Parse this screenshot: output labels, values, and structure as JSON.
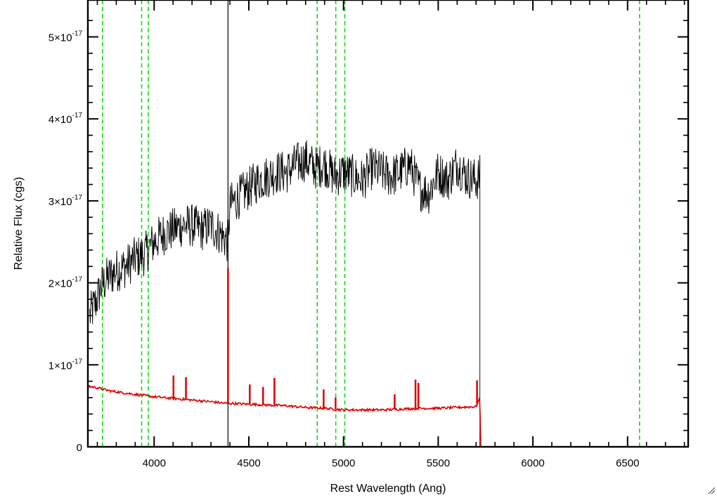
{
  "chart_data": {
    "type": "line",
    "title": "",
    "xlabel": "Rest Wavelength (Ang)",
    "ylabel": "Relative Flux (cgs)",
    "xlim": [
      3650,
      6820
    ],
    "ylim": [
      0,
      5.45e-17
    ],
    "x_ticks": [
      4000,
      4500,
      5000,
      5500,
      6000,
      6500
    ],
    "x_tick_labels": [
      "4000",
      "4500",
      "5000",
      "5500",
      "6000",
      "6500"
    ],
    "y_ticks": [
      0,
      1e-17,
      2e-17,
      3e-17,
      4e-17,
      5e-17
    ],
    "y_tick_labels": [
      {
        "mantissa": "0",
        "exponent": ""
      },
      {
        "mantissa": "1×10",
        "exponent": "-17"
      },
      {
        "mantissa": "2×10",
        "exponent": "-17"
      },
      {
        "mantissa": "3×10",
        "exponent": "-17"
      },
      {
        "mantissa": "4×10",
        "exponent": "-17"
      },
      {
        "mantissa": "5×10",
        "exponent": "-17"
      }
    ],
    "grid": false,
    "vertical_markers": {
      "color": "#00dd00",
      "style": "dashed",
      "x": [
        3727,
        3934,
        3969,
        4861,
        4959,
        5007,
        6563
      ]
    },
    "reference_line": {
      "x": 4390,
      "color": "#000000"
    },
    "series": [
      {
        "color": "#000000",
        "x": [
          3660,
          3690,
          3720,
          3750,
          3800,
          3850,
          3900,
          3950,
          4000,
          4050,
          4100,
          4150,
          4200,
          4250,
          4300,
          4350,
          4390,
          4400,
          4450,
          4500,
          4550,
          4600,
          4650,
          4700,
          4750,
          4800,
          4850,
          4900,
          4950,
          5000,
          5050,
          5100,
          5150,
          5200,
          5250,
          5300,
          5350,
          5400,
          5450,
          5500,
          5550,
          5600,
          5650,
          5700,
          5720,
          5725
        ],
        "y": [
          1.6e-17,
          1.75e-17,
          1.95e-17,
          2.05e-17,
          2.15e-17,
          2.2e-17,
          2.3e-17,
          2.35e-17,
          2.5e-17,
          2.6e-17,
          2.65e-17,
          2.7e-17,
          2.7e-17,
          2.65e-17,
          2.7e-17,
          2.6e-17,
          2.5e-17,
          2.95e-17,
          3.05e-17,
          3.15e-17,
          3.25e-17,
          3.3e-17,
          3.35e-17,
          3.35e-17,
          3.45e-17,
          3.5e-17,
          3.4e-17,
          3.45e-17,
          3.3e-17,
          3.35e-17,
          3.3e-17,
          3.25e-17,
          3.4e-17,
          3.35e-17,
          3.3e-17,
          3.35e-17,
          3.45e-17,
          3.15e-17,
          3.1e-17,
          3.35e-17,
          3.25e-17,
          3.45e-17,
          3.3e-17,
          3.25e-17,
          3.3e-17,
          0.0
        ]
      },
      {
        "color": "#dd0000",
        "x": [
          3650,
          3700,
          3750,
          3800,
          3900,
          4000,
          4100,
          4200,
          4300,
          4380,
          4400,
          4500,
          4600,
          4700,
          4800,
          4900,
          5000,
          5100,
          5200,
          5300,
          5400,
          5500,
          5600,
          5700,
          5720,
          5725,
          6820
        ],
        "y": [
          7.4e-18,
          7.2e-18,
          6.9e-18,
          6.7e-18,
          6.4e-18,
          6.1e-18,
          5.9e-18,
          5.7e-18,
          5.5e-18,
          5.3e-18,
          5.3e-18,
          5.2e-18,
          5.1e-18,
          5e-18,
          4.8e-18,
          4.7e-18,
          4.5e-18,
          4.5e-18,
          4.5e-18,
          4.6e-18,
          4.7e-18,
          4.7e-18,
          4.8e-18,
          4.9e-18,
          6e-18,
          0.0,
          0.0
        ]
      }
    ],
    "emission_spikes": [
      {
        "x": 4102,
        "top": 8.7e-18
      },
      {
        "x": 4168,
        "top": 8.5e-18
      },
      {
        "x": 4390,
        "top": 2.18e-17
      },
      {
        "x": 4505,
        "top": 7.6e-18
      },
      {
        "x": 4575,
        "top": 7.3e-18
      },
      {
        "x": 4635,
        "top": 8.4e-18
      },
      {
        "x": 4895,
        "top": 7e-18
      },
      {
        "x": 4958,
        "top": 6e-18
      },
      {
        "x": 5270,
        "top": 6.4e-18
      },
      {
        "x": 5380,
        "top": 8.2e-18
      },
      {
        "x": 5395,
        "top": 7.8e-18
      },
      {
        "x": 5705,
        "top": 8.1e-18
      }
    ]
  }
}
